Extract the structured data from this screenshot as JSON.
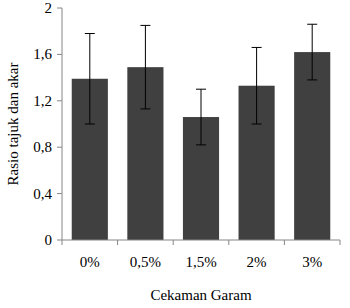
{
  "chart_data": {
    "type": "bar",
    "x_label": "Cekaman Garam",
    "y_label": "Rasio tajuk dan akar",
    "categories": [
      "0%",
      "0,5%",
      "1,5%",
      "2%",
      "3%"
    ],
    "values": [
      1.39,
      1.49,
      1.06,
      1.33,
      1.62
    ],
    "errors": [
      0.39,
      0.36,
      0.24,
      0.33,
      0.24
    ],
    "color": "#404040",
    "ylim": [
      0,
      2
    ],
    "yticks": [
      0,
      {
        "value": 0.4,
        "label": "0,4"
      },
      {
        "value": 0.8,
        "label": "0,8"
      },
      {
        "value": 1.2,
        "label": "1,2"
      },
      {
        "value": 1.6,
        "label": "1,6"
      },
      2
    ],
    "grid": false
  }
}
